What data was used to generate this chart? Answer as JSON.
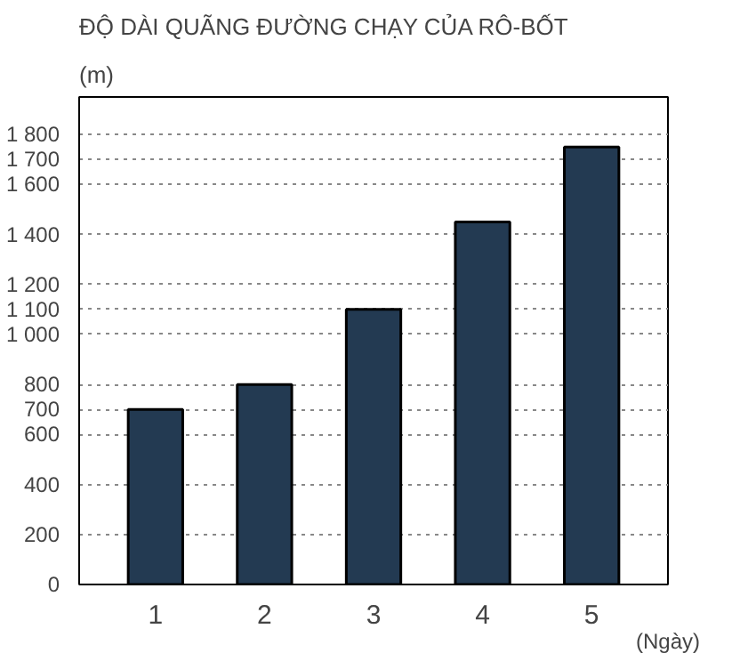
{
  "chart_data": {
    "type": "bar",
    "title": "ĐỘ DÀI QUÃNG ĐƯỜNG CHẠY CỦA RÔ-BỐT",
    "ylabel": "(m)",
    "xlabel": "(Ngày)",
    "categories": [
      "1",
      "2",
      "3",
      "4",
      "5"
    ],
    "values": [
      700,
      800,
      1100,
      1450,
      1750
    ],
    "color": "#233a52",
    "ylim": [
      0,
      1950
    ],
    "yticks": [
      0,
      200,
      400,
      600,
      700,
      800,
      {
        "value": 1000,
        "label": "1 000"
      },
      {
        "value": 1100,
        "label": "1 100"
      },
      {
        "value": 1200,
        "label": "1 200"
      },
      {
        "value": 1400,
        "label": "1 400"
      },
      {
        "value": 1600,
        "label": "1 600"
      },
      {
        "value": 1700,
        "label": "1 700"
      },
      {
        "value": 1800,
        "label": "1 800"
      }
    ],
    "grid": "y"
  }
}
